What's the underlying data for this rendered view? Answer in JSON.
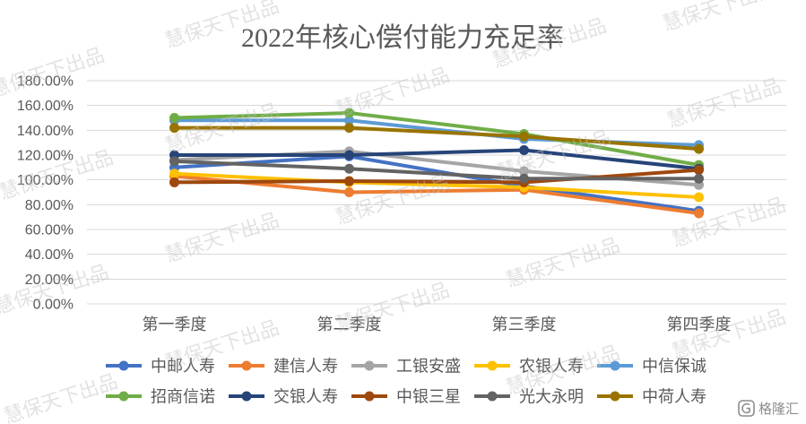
{
  "chart_data": {
    "type": "line",
    "title": "2022年核心偿付能力充足率",
    "categories": [
      "第一季度",
      "第二季度",
      "第三季度",
      "第四季度"
    ],
    "y_tick_labels": [
      "0.00%",
      "20.00%",
      "40.00%",
      "60.00%",
      "80.00%",
      "100.00%",
      "120.00%",
      "140.00%",
      "160.00%",
      "180.00%"
    ],
    "ylim": [
      0,
      180
    ],
    "grid": true,
    "legend_position": "bottom",
    "series": [
      {
        "name": "中邮人寿",
        "color": "#4472C4",
        "values": [
          110,
          119,
          95,
          75
        ]
      },
      {
        "name": "建信人寿",
        "color": "#ED7D31",
        "values": [
          103,
          90,
          92,
          73
        ]
      },
      {
        "name": "工银安盛",
        "color": "#A5A5A5",
        "values": [
          116,
          123,
          107,
          96
        ]
      },
      {
        "name": "农银人寿",
        "color": "#FFC000",
        "values": [
          105,
          98,
          94,
          86
        ]
      },
      {
        "name": "中信保诚",
        "color": "#5B9BD5",
        "values": [
          148,
          148,
          133,
          128
        ]
      },
      {
        "name": "招商信诺",
        "color": "#70AD47",
        "values": [
          150,
          154,
          137,
          112
        ]
      },
      {
        "name": "交银人寿",
        "color": "#264478",
        "values": [
          120,
          120,
          124,
          109
        ]
      },
      {
        "name": "中银三星",
        "color": "#9E480E",
        "values": [
          98,
          99,
          98,
          108
        ]
      },
      {
        "name": "光大永明",
        "color": "#636363",
        "values": [
          115,
          109,
          101,
          101
        ]
      },
      {
        "name": "中荷人寿",
        "color": "#997300",
        "values": [
          142,
          142,
          135,
          125
        ]
      }
    ]
  },
  "watermark": {
    "text": "慧保天下出品"
  },
  "source_logo": {
    "text": "格隆汇",
    "icon": "gelonghui-logo-icon"
  }
}
